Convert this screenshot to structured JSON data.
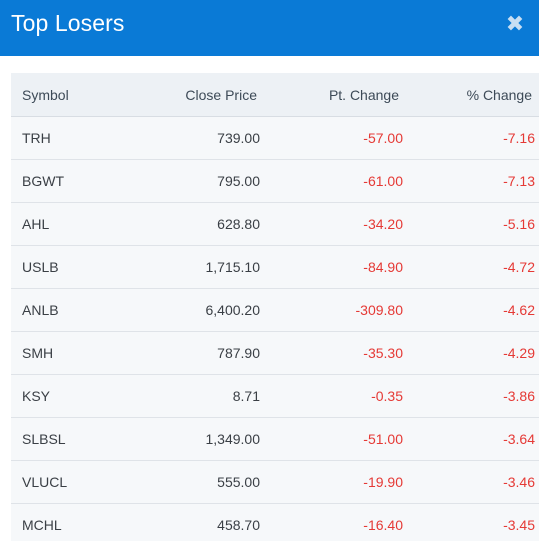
{
  "modal": {
    "title": "Top Losers",
    "close_icon": "close-icon",
    "close_glyph": "✖"
  },
  "colors": {
    "header_bg": "#0a7ad6",
    "negative": "#e53935",
    "table_header_bg": "#edf1f5",
    "row_bg": "#f6f8fa"
  },
  "table": {
    "columns": [
      "Symbol",
      "Close Price",
      "Pt. Change",
      "% Change"
    ],
    "rows": [
      {
        "symbol": "TRH",
        "close": "739.00",
        "pt": "-57.00",
        "pct": "-7.16"
      },
      {
        "symbol": "BGWT",
        "close": "795.00",
        "pt": "-61.00",
        "pct": "-7.13"
      },
      {
        "symbol": "AHL",
        "close": "628.80",
        "pt": "-34.20",
        "pct": "-5.16"
      },
      {
        "symbol": "USLB",
        "close": "1,715.10",
        "pt": "-84.90",
        "pct": "-4.72"
      },
      {
        "symbol": "ANLB",
        "close": "6,400.20",
        "pt": "-309.80",
        "pct": "-4.62"
      },
      {
        "symbol": "SMH",
        "close": "787.90",
        "pt": "-35.30",
        "pct": "-4.29"
      },
      {
        "symbol": "KSY",
        "close": "8.71",
        "pt": "-0.35",
        "pct": "-3.86"
      },
      {
        "symbol": "SLBSL",
        "close": "1,349.00",
        "pt": "-51.00",
        "pct": "-3.64"
      },
      {
        "symbol": "VLUCL",
        "close": "555.00",
        "pt": "-19.90",
        "pct": "-3.46"
      },
      {
        "symbol": "MCHL",
        "close": "458.70",
        "pt": "-16.40",
        "pct": "-3.45"
      }
    ]
  }
}
